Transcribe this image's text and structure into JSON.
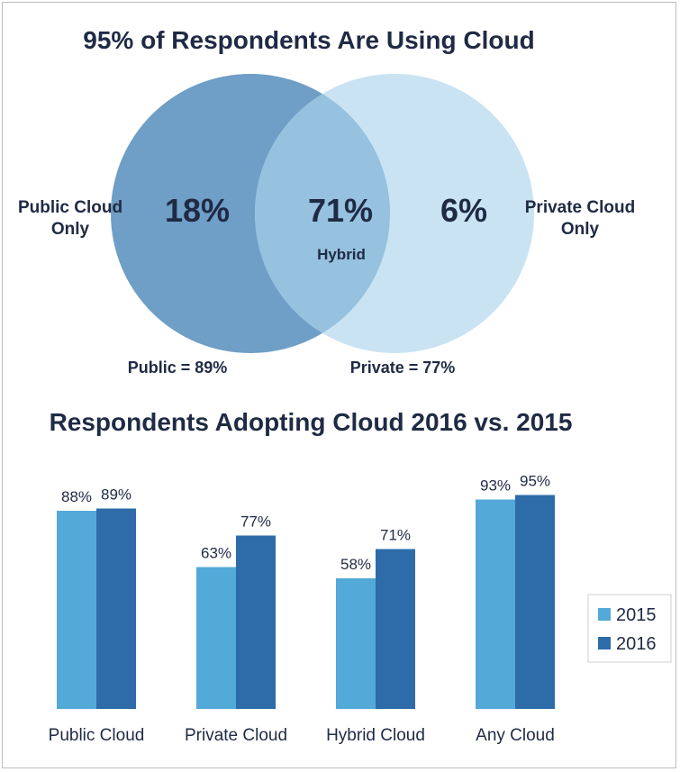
{
  "chart_data": [
    {
      "type": "venn",
      "title": "95% of Respondents Are Using Cloud",
      "sets": [
        {
          "label_line1": "Public Cloud",
          "label_line2": "Only",
          "only_value": "18%",
          "total_label": "Public = 89%",
          "color": "#6f9ec6"
        },
        {
          "label_line1": "Private Cloud",
          "label_line2": "Only",
          "only_value": "6%",
          "total_label": "Private = 77%",
          "color": "#c9e3f3"
        }
      ],
      "intersection": {
        "value": "71%",
        "label": "Hybrid",
        "color": "#96c1df"
      }
    },
    {
      "type": "bar",
      "title": "Respondents Adopting Cloud 2016 vs. 2015",
      "categories": [
        "Public Cloud",
        "Private Cloud",
        "Hybrid Cloud",
        "Any Cloud"
      ],
      "series": [
        {
          "name": "2015",
          "values": [
            88,
            63,
            58,
            93
          ],
          "labels": [
            "88%",
            "63%",
            "58%",
            "93%"
          ],
          "color": "#53a9d8"
        },
        {
          "name": "2016",
          "values": [
            89,
            77,
            71,
            95
          ],
          "labels": [
            "89%",
            "77%",
            "71%",
            "95%"
          ],
          "color": "#2d6ca9"
        }
      ],
      "ylim": [
        0,
        100
      ],
      "legend": "right",
      "grid": false
    }
  ]
}
